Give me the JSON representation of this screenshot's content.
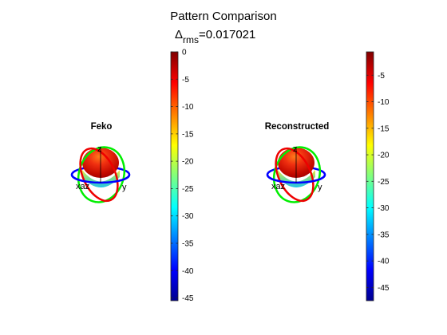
{
  "figure": {
    "title": "Pattern Comparison",
    "delta_symbol": "Δ",
    "delta_subscript": "rms",
    "delta_value": "=0.017021"
  },
  "chart_data": [
    {
      "type": "other",
      "title": "Feko",
      "axis_labels": {
        "x": "x",
        "y": "y",
        "z": "z",
        "overlap": "xaz"
      },
      "colorbar": {
        "ticks": [
          0,
          -5,
          -10,
          -15,
          -20,
          -25,
          -30,
          -35,
          -40,
          -45
        ],
        "range": [
          -45.5,
          0
        ],
        "colormap": "jet"
      }
    },
    {
      "type": "other",
      "title": "Reconstructed",
      "axis_labels": {
        "x": "x",
        "y": "y",
        "z": "z",
        "overlap": "xaz"
      },
      "colorbar": {
        "ticks": [
          -5,
          -10,
          -15,
          -20,
          -25,
          -30,
          -35,
          -40,
          -45
        ],
        "range": [
          -47.5,
          -0.6
        ],
        "colormap": "jet"
      }
    }
  ],
  "colors": {
    "ring_x": "#ff0000",
    "ring_y": "#00dd00",
    "ring_z": "#0000ff",
    "pattern_top": "#cc1100",
    "pattern_bottom": "#2cc8e0"
  }
}
